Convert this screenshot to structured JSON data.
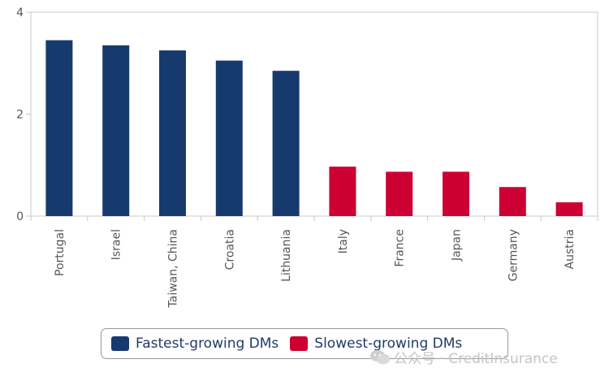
{
  "chart_data": {
    "type": "bar",
    "categories": [
      "Portugal",
      "Israel",
      "Taiwan, China",
      "Croatia",
      "Lithuania",
      "Italy",
      "France",
      "Japan",
      "Germany",
      "Austria"
    ],
    "values": [
      3.45,
      3.35,
      3.25,
      3.05,
      2.85,
      0.97,
      0.87,
      0.87,
      0.57,
      0.27
    ],
    "groups": [
      "fast",
      "fast",
      "fast",
      "fast",
      "fast",
      "slow",
      "slow",
      "slow",
      "slow",
      "slow"
    ],
    "series": [
      {
        "name": "Fastest-growing DMs",
        "key": "fast",
        "color": "#173a6e"
      },
      {
        "name": "Slowest-growing DMs",
        "key": "slow",
        "color": "#cc0033"
      }
    ],
    "ylim": [
      0,
      4
    ],
    "yticks": [
      "0",
      "2",
      "4"
    ],
    "grid": false,
    "legend_position": "bottom"
  },
  "watermark": {
    "icon": "wechat-icon",
    "text": "公众号 · CreditInsurance"
  }
}
